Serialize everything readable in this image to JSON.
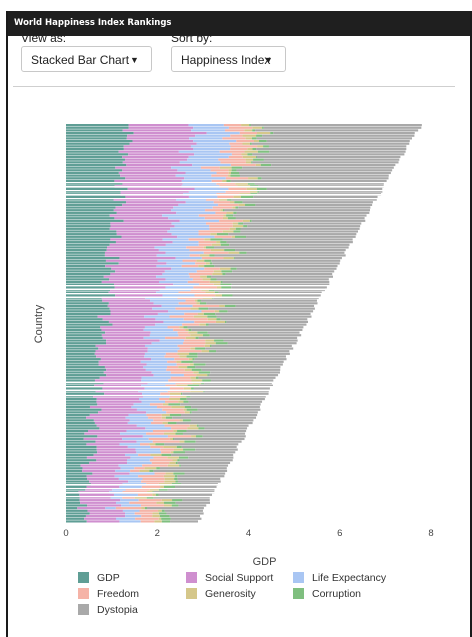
{
  "app": {
    "title": "World Happiness Index Rankings"
  },
  "controls": {
    "view_label": "View as:",
    "view_value": "Stacked Bar Chart",
    "sort_label": "Sort by:",
    "sort_value": "Happiness Index"
  },
  "colors": {
    "GDP": "#5f9e95",
    "Social Support": "#cf8fcf",
    "Life Expectancy": "#a9c6f3",
    "Freedom": "#f5b3a7",
    "Generosity": "#d5c78a",
    "Corruption": "#7fbf7f",
    "Dystopia": "#a9a9a9"
  },
  "chart_data": {
    "type": "bar",
    "orientation": "horizontal",
    "stacked": true,
    "xlabel": "GDP",
    "ylabel": "Country",
    "xlim": [
      0,
      8
    ],
    "xticks": [
      0,
      2,
      4,
      6,
      8
    ],
    "grid": false,
    "legend_position": "bottom",
    "legend": [
      "GDP",
      "Social Support",
      "Life Expectancy",
      "Freedom",
      "Generosity",
      "Corruption",
      "Dystopia"
    ],
    "series_order": [
      "GDP",
      "Social Support",
      "Life Expectancy",
      "Freedom",
      "Generosity",
      "Corruption",
      "Dystopia"
    ],
    "approx_country_count": 150,
    "sorted_by": "Happiness Index",
    "total_range": [
      2.9,
      7.8
    ],
    "typical_components": {
      "GDP": [
        0.0,
        1.6
      ],
      "Social Support": [
        0.0,
        1.6
      ],
      "Life Expectancy": [
        0.0,
        1.0
      ],
      "Freedom": [
        0.0,
        0.6
      ],
      "Generosity": [
        0.0,
        0.4
      ],
      "Corruption": [
        0.0,
        0.4
      ],
      "Dystopia": [
        0.8,
        3.0
      ]
    }
  }
}
